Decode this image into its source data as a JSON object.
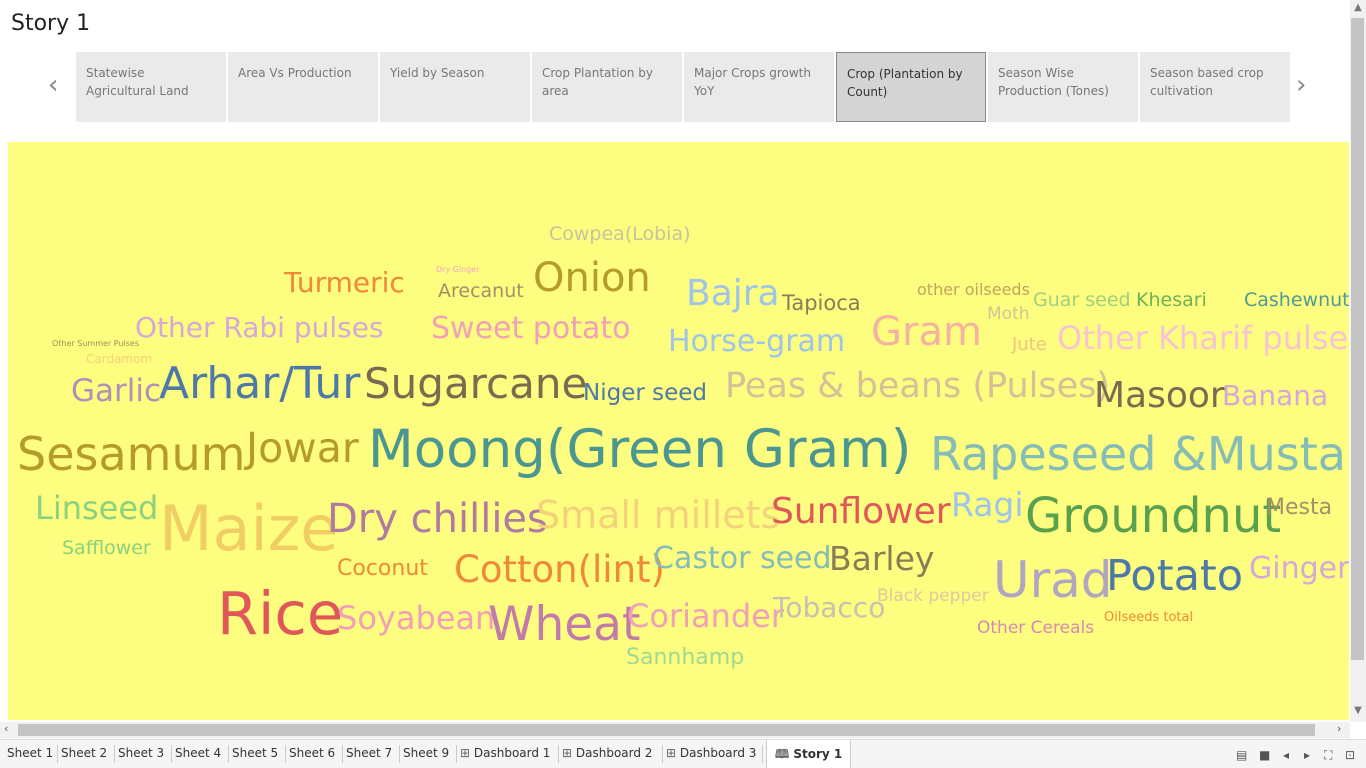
{
  "story": {
    "title": "Story 1"
  },
  "nav": {
    "prev": "‹",
    "next": "›"
  },
  "story_points": [
    {
      "label": "Statewise Agricultural Land",
      "active": false
    },
    {
      "label": "Area Vs Production",
      "active": false
    },
    {
      "label": "Yield by Season",
      "active": false
    },
    {
      "label": "Crop Plantation by area",
      "active": false
    },
    {
      "label": "Major Crops growth YoY",
      "active": false
    },
    {
      "label": "Crop  (Plantation by Count)",
      "active": true
    },
    {
      "label": "Season Wise Production (Tones)",
      "active": false
    },
    {
      "label": "Season based crop cultivation",
      "active": false
    }
  ],
  "word_cloud": {
    "background": "#fdfd80",
    "words": [
      {
        "text": "Cowpea(Lobia)",
        "color": "#c9c39a"
      },
      {
        "text": "Turmeric",
        "color": "#f0883a"
      },
      {
        "text": "Dry Ginger",
        "color": "#f2a6c4"
      },
      {
        "text": "Arecanut",
        "color": "#a58f6a"
      },
      {
        "text": "Onion",
        "color": "#b59b2a"
      },
      {
        "text": "Bajra",
        "color": "#9ec5e8"
      },
      {
        "text": "Tapioca",
        "color": "#8a7d56"
      },
      {
        "text": "other oilseeds",
        "color": "#c4a35c"
      },
      {
        "text": "Guar seed",
        "color": "#9fd07e"
      },
      {
        "text": "Khesari",
        "color": "#6fb254"
      },
      {
        "text": "Cashewnut",
        "color": "#4f9a96"
      },
      {
        "text": "Other Summer Pulses",
        "color": "#a68c56"
      },
      {
        "text": "Other Rabi pulses",
        "color": "#d6a8d8"
      },
      {
        "text": "Sweet potato",
        "color": "#f2a0b8"
      },
      {
        "text": "Moth",
        "color": "#d4c590"
      },
      {
        "text": "Gram",
        "color": "#f4b2a0"
      },
      {
        "text": "Horse-gram",
        "color": "#9ec5e8"
      },
      {
        "text": "Jute",
        "color": "#f4c280"
      },
      {
        "text": "Other Kharif pulses",
        "color": "#f7c4d4"
      },
      {
        "text": "Cardamom",
        "color": "#f4d27a"
      },
      {
        "text": "Garlic",
        "color": "#b28fb8"
      },
      {
        "text": "Arhar/Tur",
        "color": "#4e79a7"
      },
      {
        "text": "Sugarcane",
        "color": "#7a6b50"
      },
      {
        "text": "Niger seed",
        "color": "#4e79a7"
      },
      {
        "text": "Peas & beans (Pulses)",
        "color": "#d6c098"
      },
      {
        "text": "Masoor",
        "color": "#7a6b50"
      },
      {
        "text": "Banana",
        "color": "#d6a8d8"
      },
      {
        "text": "Sesamum",
        "color": "#b59b2a"
      },
      {
        "text": "Jowar",
        "color": "#b59b2a"
      },
      {
        "text": "Moong(Green Gram)",
        "color": "#4c9692"
      },
      {
        "text": "Rapeseed &Mustard",
        "color": "#86bcb6"
      },
      {
        "text": "Linseed",
        "color": "#8cd17d"
      },
      {
        "text": "Maize",
        "color": "#f1ce63"
      },
      {
        "text": "Dry chillies",
        "color": "#b07aa1"
      },
      {
        "text": "Small millets",
        "color": "#f4d27a"
      },
      {
        "text": "Sunflower",
        "color": "#e15759"
      },
      {
        "text": "Ragi",
        "color": "#9ec5e8"
      },
      {
        "text": "Groundnut",
        "color": "#59a14f"
      },
      {
        "text": "Mesta",
        "color": "#a58f6a"
      },
      {
        "text": "Safflower",
        "color": "#8cd17d"
      },
      {
        "text": "Coconut",
        "color": "#f0883a"
      },
      {
        "text": "Cotton(lint)",
        "color": "#f0883a"
      },
      {
        "text": "Castor seed",
        "color": "#86bcb6"
      },
      {
        "text": "Barley",
        "color": "#8a7d56"
      },
      {
        "text": "Urad",
        "color": "#b0a6c0"
      },
      {
        "text": "Potato",
        "color": "#4e79a7"
      },
      {
        "text": "Ginger",
        "color": "#d6a8d8"
      },
      {
        "text": "Rice",
        "color": "#e15759"
      },
      {
        "text": "Soyabean",
        "color": "#f2a0b8"
      },
      {
        "text": "Wheat",
        "color": "#c27aa8"
      },
      {
        "text": "Coriander",
        "color": "#f2a0b8"
      },
      {
        "text": "Tobacco",
        "color": "#c8c0b0"
      },
      {
        "text": "Black pepper",
        "color": "#e0c8a0"
      },
      {
        "text": "Other Cereals",
        "color": "#d68ab0"
      },
      {
        "text": "Oilseeds total",
        "color": "#f0883a"
      },
      {
        "text": "Sannhamp",
        "color": "#a0d890"
      }
    ]
  },
  "scrollbars": {
    "up": "▲",
    "down": "▼",
    "left": "‹",
    "right": "›"
  },
  "sheet_tabs": [
    {
      "label": "Sheet 1",
      "icon": "",
      "active": false
    },
    {
      "label": "Sheet 2",
      "icon": "",
      "active": false
    },
    {
      "label": "Sheet 3",
      "icon": "",
      "active": false
    },
    {
      "label": "Sheet 4",
      "icon": "",
      "active": false
    },
    {
      "label": "Sheet 5",
      "icon": "",
      "active": false
    },
    {
      "label": "Sheet 6",
      "icon": "",
      "active": false
    },
    {
      "label": "Sheet 7",
      "icon": "",
      "active": false
    },
    {
      "label": "Sheet 9",
      "icon": "",
      "active": false
    },
    {
      "label": "Dashboard 1",
      "icon": "⊞",
      "active": false
    },
    {
      "label": "Dashboard 2",
      "icon": "⊞",
      "active": false
    },
    {
      "label": "Dashboard 3",
      "icon": "⊞",
      "active": false
    },
    {
      "label": "Story 1",
      "icon": "🕮",
      "active": true
    }
  ],
  "controls": [
    "grid-view-icon",
    "filmstrip-icon",
    "prev-icon",
    "next-icon",
    "fit-icon",
    "present-icon"
  ],
  "control_glyphs": [
    "▤",
    "■",
    "◂",
    "▸",
    "⛶",
    "⊡"
  ]
}
